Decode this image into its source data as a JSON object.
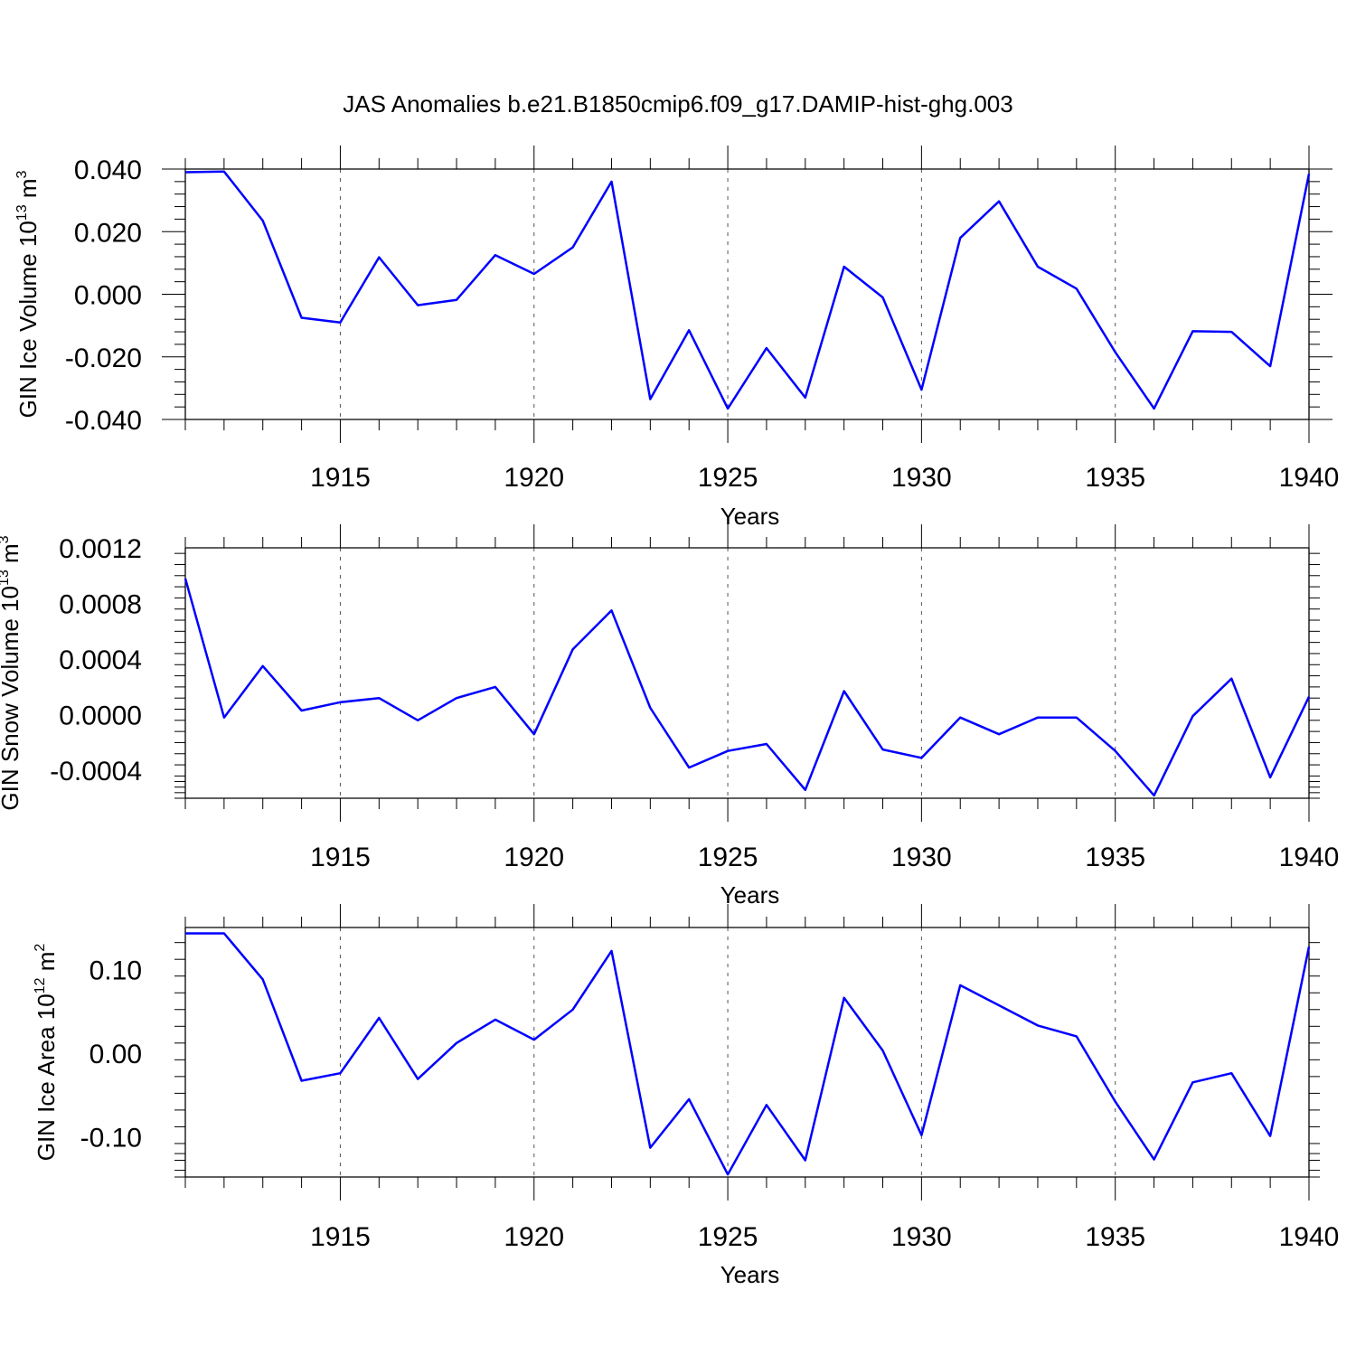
{
  "title": "JAS Anomalies b.e21.B1850cmip6.f09_g17.DAMIP-hist-ghg.003",
  "colors": {
    "line": "#0000ff",
    "axis": "#000000",
    "grid": "#555555"
  },
  "chart_data": [
    {
      "type": "line",
      "name": "ice-volume",
      "ylabel": {
        "text": "GIN Ice Volume 10",
        "sup": "13",
        "unit": " m",
        "unit_sup": "3"
      },
      "xlabel": "Years",
      "x": [
        1911,
        1912,
        1913,
        1914,
        1915,
        1916,
        1917,
        1918,
        1919,
        1920,
        1921,
        1922,
        1923,
        1924,
        1925,
        1926,
        1927,
        1928,
        1929,
        1930,
        1931,
        1932,
        1933,
        1934,
        1935,
        1936,
        1937,
        1938,
        1939,
        1940
      ],
      "values": [
        0.039,
        0.0392,
        0.0235,
        -0.0075,
        -0.009,
        0.0118,
        -0.0035,
        -0.0018,
        0.0125,
        0.0065,
        0.015,
        0.036,
        -0.0335,
        -0.0115,
        -0.0365,
        -0.0172,
        -0.033,
        0.0088,
        -0.001,
        -0.0305,
        0.018,
        0.0297,
        0.0088,
        0.0018,
        -0.0185,
        -0.0365,
        -0.0118,
        -0.012,
        -0.023,
        0.0385
      ],
      "xlim": [
        1911,
        1940
      ],
      "ylim": [
        -0.04,
        0.04
      ],
      "xticks": [
        1915,
        1920,
        1925,
        1930,
        1935,
        1940
      ],
      "xtick_labels": [
        "1915",
        "1920",
        "1925",
        "1930",
        "1935",
        "1940"
      ],
      "yticks": [
        -0.04,
        -0.02,
        0.0,
        0.02,
        0.04
      ],
      "ytick_labels": [
        "-0.040",
        "-0.020",
        "0.000",
        "0.020",
        "0.040"
      ]
    },
    {
      "type": "line",
      "name": "snow-volume",
      "ylabel": {
        "text": "GIN Snow Volume 10",
        "sup": "13",
        "unit": " m",
        "unit_sup": "3"
      },
      "xlabel": "Years",
      "x": [
        1911,
        1912,
        1913,
        1914,
        1915,
        1916,
        1917,
        1918,
        1919,
        1920,
        1921,
        1922,
        1923,
        1924,
        1925,
        1926,
        1927,
        1928,
        1929,
        1930,
        1931,
        1932,
        1933,
        1934,
        1935,
        1936,
        1937,
        1938,
        1939,
        1940
      ],
      "values": [
        0.00098,
        -2e-05,
        0.00035,
        3e-05,
        9e-05,
        0.00012,
        -4e-05,
        0.00012,
        0.0002,
        -0.00014,
        0.00047,
        0.00075,
        5e-05,
        -0.00038,
        -0.00026,
        -0.00021,
        -0.00054,
        0.00017,
        -0.00025,
        -0.00031,
        -2e-05,
        -0.00014,
        -2e-05,
        -2e-05,
        -0.00026,
        -0.00058,
        -1e-05,
        0.00026,
        -0.00045,
        0.00013
      ],
      "xlim": [
        1911,
        1940
      ],
      "ylim": [
        -0.0006,
        0.0012
      ],
      "xticks": [
        1915,
        1920,
        1925,
        1930,
        1935,
        1940
      ],
      "xtick_labels": [
        "1915",
        "1920",
        "1925",
        "1930",
        "1935",
        "1940"
      ],
      "yticks": [
        -0.0004,
        0.0,
        0.0004,
        0.0008,
        0.0012
      ],
      "ytick_labels": [
        "-0.0004",
        "0.0000",
        "0.0004",
        "0.0008",
        "0.0012"
      ]
    },
    {
      "type": "line",
      "name": "ice-area",
      "ylabel": {
        "text": "GIN Ice Area 10",
        "sup": "12",
        "unit": " m",
        "unit_sup": "2"
      },
      "xlabel": "Years",
      "x": [
        1911,
        1912,
        1913,
        1914,
        1915,
        1916,
        1917,
        1918,
        1919,
        1920,
        1921,
        1922,
        1923,
        1924,
        1925,
        1926,
        1927,
        1928,
        1929,
        1930,
        1931,
        1932,
        1933,
        1934,
        1935,
        1936,
        1937,
        1938,
        1939,
        1940
      ],
      "values": [
        0.143,
        0.143,
        0.088,
        -0.033,
        -0.024,
        0.042,
        -0.031,
        0.012,
        0.04,
        0.016,
        0.052,
        0.122,
        -0.113,
        -0.055,
        -0.145,
        -0.062,
        -0.128,
        0.066,
        0.003,
        -0.098,
        0.081,
        0.057,
        0.033,
        0.02,
        -0.058,
        -0.127,
        -0.035,
        -0.024,
        -0.099,
        0.127
      ],
      "xlim": [
        1911,
        1940
      ],
      "ylim": [
        -0.148,
        0.15
      ],
      "xticks": [
        1915,
        1920,
        1925,
        1930,
        1935,
        1940
      ],
      "xtick_labels": [
        "1915",
        "1920",
        "1925",
        "1930",
        "1935",
        "1940"
      ],
      "yticks": [
        -0.1,
        0.0,
        0.1
      ],
      "ytick_labels": [
        "-0.10",
        "0.00",
        "0.10"
      ]
    }
  ]
}
